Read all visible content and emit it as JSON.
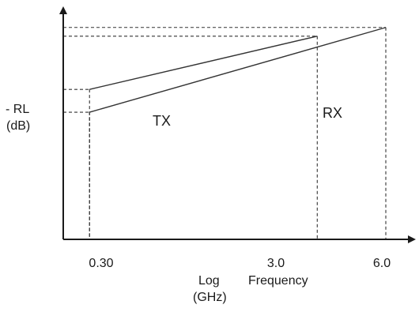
{
  "chart_data": {
    "type": "line",
    "x_scale": "log",
    "ylabel": [
      "- RL",
      "(dB)"
    ],
    "xlabel": [
      "Log",
      "Frequency",
      "(GHz)"
    ],
    "x_ticks": [
      "0.30",
      "3.0",
      "6.0"
    ],
    "series": [
      {
        "name": "TX",
        "x": [
          0.3,
          3.0
        ],
        "y": [
          0.43,
          0.92
        ]
      },
      {
        "name": "RX",
        "x": [
          0.3,
          6.0
        ],
        "y": [
          0.22,
          1.0
        ]
      }
    ],
    "xlim": [
      0.23,
      8.0
    ],
    "ylim": [
      -0.95,
      1.18
    ],
    "grid": false,
    "legend": "none",
    "colors": {
      "line": "#333333",
      "guide": "#333333",
      "text": "#1a1a1a"
    }
  }
}
